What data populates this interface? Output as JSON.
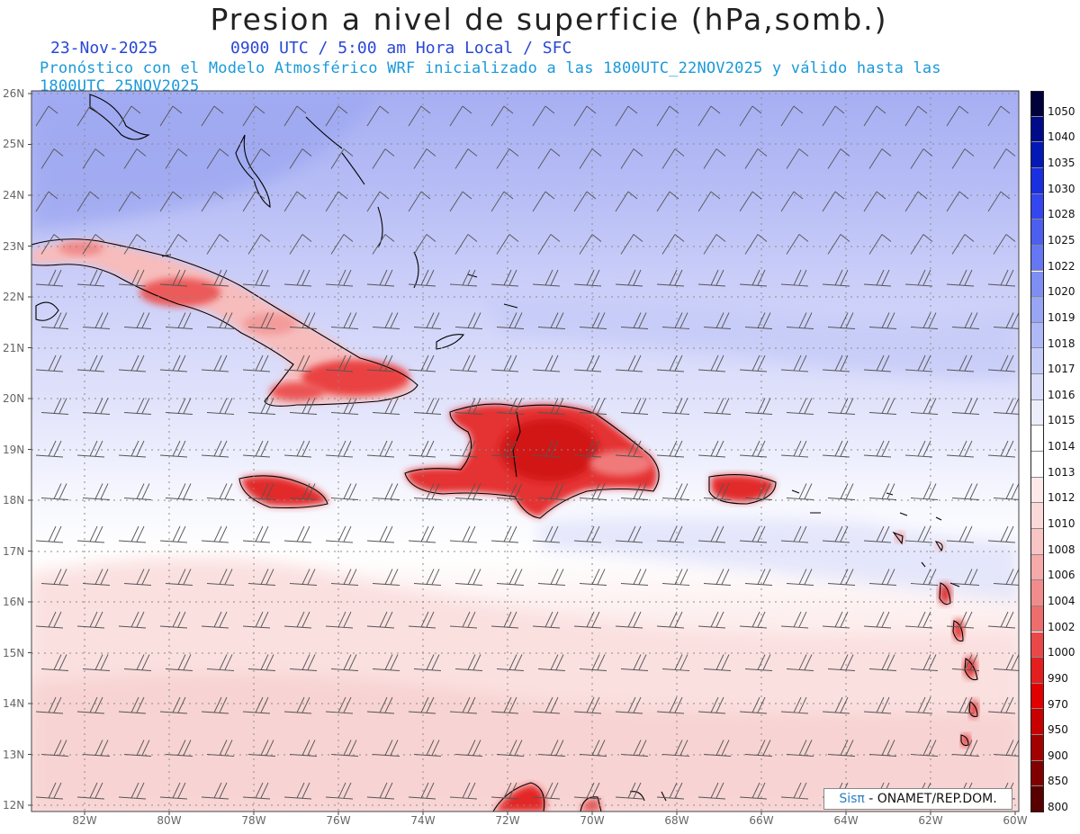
{
  "header": {
    "title": "Presion a nivel de superficie (hPa,somb.)",
    "date": "23-Nov-2025",
    "valid_time": "0900 UTC / 5:00 am Hora Local / SFC",
    "forecast_info": "Pronóstico con el Modelo Atmosférico WRF inicializado a las 1800UTC_22NOV2025 y válido hasta las  1800UTC_25NOV2025"
  },
  "map": {
    "lon_ticks": [
      "82W",
      "80W",
      "78W",
      "76W",
      "74W",
      "72W",
      "70W",
      "68W",
      "66W",
      "64W",
      "62W",
      "60W"
    ],
    "lat_ticks": [
      "26N",
      "25N",
      "24N",
      "23N",
      "22N",
      "21N",
      "20N",
      "19N",
      "18N",
      "17N",
      "16N",
      "15N",
      "14N",
      "13N",
      "12N"
    ],
    "lon_range": [
      -83.2,
      -60
    ],
    "lat_range": [
      11.9,
      26.1
    ]
  },
  "colorbar": {
    "levels": [
      "1050",
      "1040",
      "1035",
      "1030",
      "1028",
      "1025",
      "1022",
      "1020",
      "1019",
      "1018",
      "1017",
      "1016",
      "1015",
      "1014",
      "1013",
      "1012",
      "1010",
      "1008",
      "1006",
      "1004",
      "1002",
      "1000",
      "990",
      "970",
      "950",
      "900",
      "850",
      "800"
    ],
    "colors": [
      "#00003a",
      "#000b8a",
      "#0418b6",
      "#1a2fe0",
      "#3446f0",
      "#4c5ff0",
      "#6577f2",
      "#7e8ef3",
      "#98a5f5",
      "#b0b9f7",
      "#c6ccf8",
      "#d9ddf9",
      "#eceefc",
      "#ffffff",
      "#ffffff",
      "#fde9e9",
      "#fbd9d9",
      "#f9c4c4",
      "#f6aaaa",
      "#f28c8c",
      "#ee6d6d",
      "#ea4848",
      "#e41e1e",
      "#e00000",
      "#c80000",
      "#a30000",
      "#800000",
      "#580000"
    ]
  },
  "credit": {
    "brand": "Sisπ",
    "text": " - ONAMET/REP.DOM."
  }
}
